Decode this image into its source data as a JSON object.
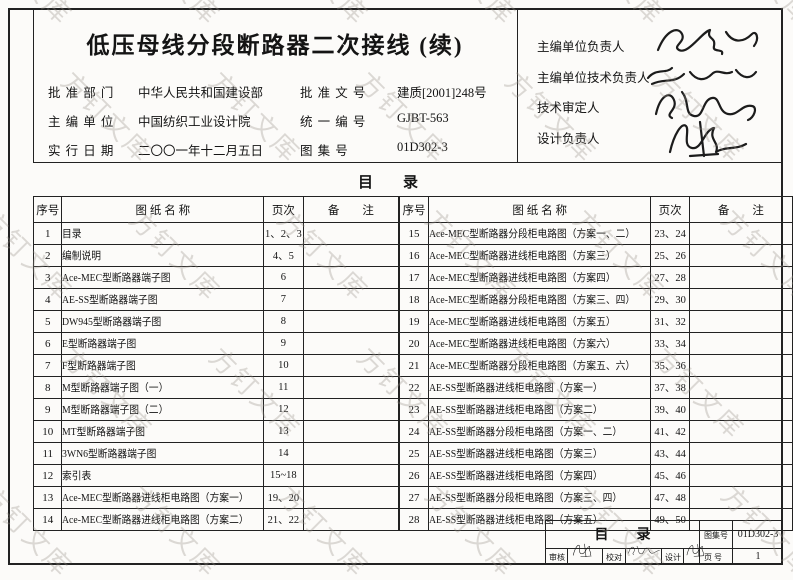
{
  "page": {
    "watermark_text": "方钉文库"
  },
  "header": {
    "title": "低压母线分段断路器二次接线 (续)",
    "fields": [
      {
        "label": "批 准 部 门",
        "value": "中华人民共和国建设部"
      },
      {
        "label": "批 准 文 号",
        "value": "建质[2001]248号"
      },
      {
        "label": "主 编 单 位",
        "value": "中国纺织工业设计院"
      },
      {
        "label": "统 一 编 号",
        "value": "GJBT-563"
      },
      {
        "label": "实 行 日 期",
        "value": "二〇〇一年十二月五日"
      },
      {
        "label": "图 集 号",
        "value": "01D302-3"
      }
    ],
    "signatories": [
      {
        "label": "主编单位负责人"
      },
      {
        "label": "主编单位技术负责人"
      },
      {
        "label": "技术审定人"
      },
      {
        "label": "设计负责人"
      }
    ]
  },
  "toc": {
    "heading": "目　　录",
    "columns": [
      "序号",
      "图 纸 名 称",
      "页次",
      "备　　注"
    ],
    "left_rows": [
      {
        "no": "1",
        "name": "目录",
        "pages": "1、2、3",
        "note": ""
      },
      {
        "no": "2",
        "name": "编制说明",
        "pages": "4、5",
        "note": ""
      },
      {
        "no": "3",
        "name": "Ace-MEC型断路器端子图",
        "pages": "6",
        "note": ""
      },
      {
        "no": "4",
        "name": "AE-SS型断路器端子图",
        "pages": "7",
        "note": ""
      },
      {
        "no": "5",
        "name": "DW945型断路器端子图",
        "pages": "8",
        "note": ""
      },
      {
        "no": "6",
        "name": "E型断路器端子图",
        "pages": "9",
        "note": ""
      },
      {
        "no": "7",
        "name": "F型断路器端子图",
        "pages": "10",
        "note": ""
      },
      {
        "no": "8",
        "name": "M型断路器端子图（一）",
        "pages": "11",
        "note": ""
      },
      {
        "no": "9",
        "name": "M型断路器端子图（二）",
        "pages": "12",
        "note": ""
      },
      {
        "no": "10",
        "name": "MT型断路器端子图",
        "pages": "13",
        "note": ""
      },
      {
        "no": "11",
        "name": "3WN6型断路器端子图",
        "pages": "14",
        "note": ""
      },
      {
        "no": "12",
        "name": "索引表",
        "pages": "15~18",
        "note": ""
      },
      {
        "no": "13",
        "name": "Ace-MEC型断路器进线柜电路图（方案一）",
        "pages": "19、20",
        "note": ""
      },
      {
        "no": "14",
        "name": "Ace-MEC型断路器进线柜电路图（方案二）",
        "pages": "21、22",
        "note": ""
      }
    ],
    "right_rows": [
      {
        "no": "15",
        "name": "Ace-MEC型断路器分段柜电路图（方案一、二）",
        "pages": "23、24",
        "note": ""
      },
      {
        "no": "16",
        "name": "Ace-MEC型断路器进线柜电路图（方案三）",
        "pages": "25、26",
        "note": ""
      },
      {
        "no": "17",
        "name": "Ace-MEC型断路器进线柜电路图（方案四）",
        "pages": "27、28",
        "note": ""
      },
      {
        "no": "18",
        "name": "Ace-MEC型断路器分段柜电路图（方案三、四）",
        "pages": "29、30",
        "note": ""
      },
      {
        "no": "19",
        "name": "Ace-MEC型断路器进线柜电路图（方案五）",
        "pages": "31、32",
        "note": ""
      },
      {
        "no": "20",
        "name": "Ace-MEC型断路器进线柜电路图（方案六）",
        "pages": "33、34",
        "note": ""
      },
      {
        "no": "21",
        "name": "Ace-MEC型断路器分段柜电路图（方案五、六）",
        "pages": "35、36",
        "note": ""
      },
      {
        "no": "22",
        "name": "AE-SS型断路器进线柜电路图（方案一）",
        "pages": "37、38",
        "note": ""
      },
      {
        "no": "23",
        "name": "AE-SS型断路器进线柜电路图（方案二）",
        "pages": "39、40",
        "note": ""
      },
      {
        "no": "24",
        "name": "AE-SS型断路器分段柜电路图（方案一、二）",
        "pages": "41、42",
        "note": ""
      },
      {
        "no": "25",
        "name": "AE-SS型断路器进线柜电路图（方案三）",
        "pages": "43、44",
        "note": ""
      },
      {
        "no": "26",
        "name": "AE-SS型断路器进线柜电路图（方案四）",
        "pages": "45、46",
        "note": ""
      },
      {
        "no": "27",
        "name": "AE-SS型断路器分段柜电路图（方案三、四）",
        "pages": "47、48",
        "note": ""
      },
      {
        "no": "28",
        "name": "AE-SS型断路器进线柜电路图（方案五）",
        "pages": "49、50",
        "note": ""
      }
    ]
  },
  "title_block": {
    "title": "目　　录",
    "atlas_no_label": "图集号",
    "atlas_no": "01D302-3",
    "page_label": "页 号",
    "page_no": "1",
    "review_label": "审核",
    "proof_label": "校对",
    "design_label": "设计"
  }
}
